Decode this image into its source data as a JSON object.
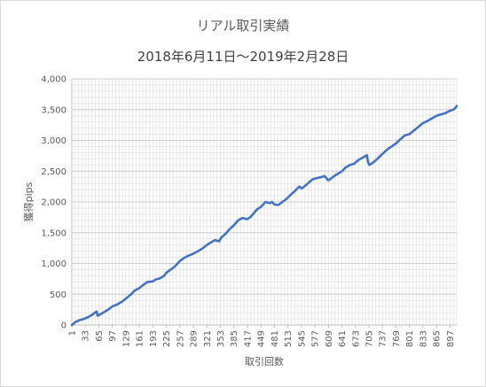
{
  "chart_data": {
    "type": "line",
    "title": "リアル取引実績",
    "subtitle": "2018年6月11日～2019年2月28日",
    "xlabel": "取引回数",
    "ylabel": "獲得pips",
    "ylim": [
      0,
      4000
    ],
    "xlim": [
      1,
      913
    ],
    "y_ticks": [
      "0",
      "500",
      "1,000",
      "1,500",
      "2,000",
      "2,500",
      "3,000",
      "3,500",
      "4,000"
    ],
    "x_ticks": [
      "1",
      "33",
      "65",
      "97",
      "129",
      "161",
      "193",
      "225",
      "257",
      "289",
      "321",
      "353",
      "385",
      "417",
      "449",
      "481",
      "513",
      "545",
      "577",
      "609",
      "641",
      "673",
      "705",
      "737",
      "769",
      "801",
      "833",
      "865",
      "897"
    ],
    "grid": true,
    "legend": "none",
    "series": [
      {
        "color": "#4472c4",
        "x": [
          1,
          10,
          20,
          30,
          40,
          50,
          55,
          60,
          62,
          65,
          75,
          85,
          97,
          110,
          120,
          129,
          140,
          150,
          161,
          170,
          180,
          193,
          200,
          210,
          220,
          225,
          235,
          245,
          257,
          265,
          275,
          289,
          300,
          310,
          321,
          330,
          340,
          350,
          355,
          365,
          375,
          385,
          395,
          405,
          417,
          425,
          430,
          440,
          449,
          460,
          470,
          475,
          481,
          490,
          500,
          510,
          520,
          530,
          540,
          545,
          550,
          560,
          570,
          577,
          590,
          600,
          605,
          609,
          615,
          625,
          641,
          650,
          660,
          670,
          673,
          680,
          690,
          700,
          703,
          706,
          715,
          725,
          737,
          750,
          769,
          780,
          790,
          801,
          815,
          833,
          845,
          855,
          865,
          875,
          885,
          897,
          905,
          910,
          913
        ],
        "values": [
          0,
          50,
          80,
          100,
          130,
          170,
          200,
          220,
          150,
          160,
          200,
          240,
          300,
          340,
          380,
          430,
          490,
          560,
          600,
          650,
          700,
          710,
          740,
          760,
          800,
          850,
          900,
          950,
          1040,
          1080,
          1120,
          1160,
          1200,
          1240,
          1300,
          1340,
          1380,
          1360,
          1420,
          1480,
          1560,
          1620,
          1700,
          1740,
          1720,
          1760,
          1800,
          1880,
          1920,
          2000,
          1980,
          2000,
          1960,
          1950,
          2000,
          2050,
          2120,
          2180,
          2250,
          2220,
          2240,
          2300,
          2360,
          2380,
          2400,
          2420,
          2380,
          2350,
          2380,
          2430,
          2500,
          2560,
          2600,
          2620,
          2640,
          2680,
          2720,
          2760,
          2640,
          2600,
          2640,
          2700,
          2780,
          2860,
          2950,
          3020,
          3080,
          3100,
          3180,
          3280,
          3320,
          3360,
          3400,
          3420,
          3440,
          3480,
          3500,
          3530,
          3560
        ]
      }
    ]
  }
}
